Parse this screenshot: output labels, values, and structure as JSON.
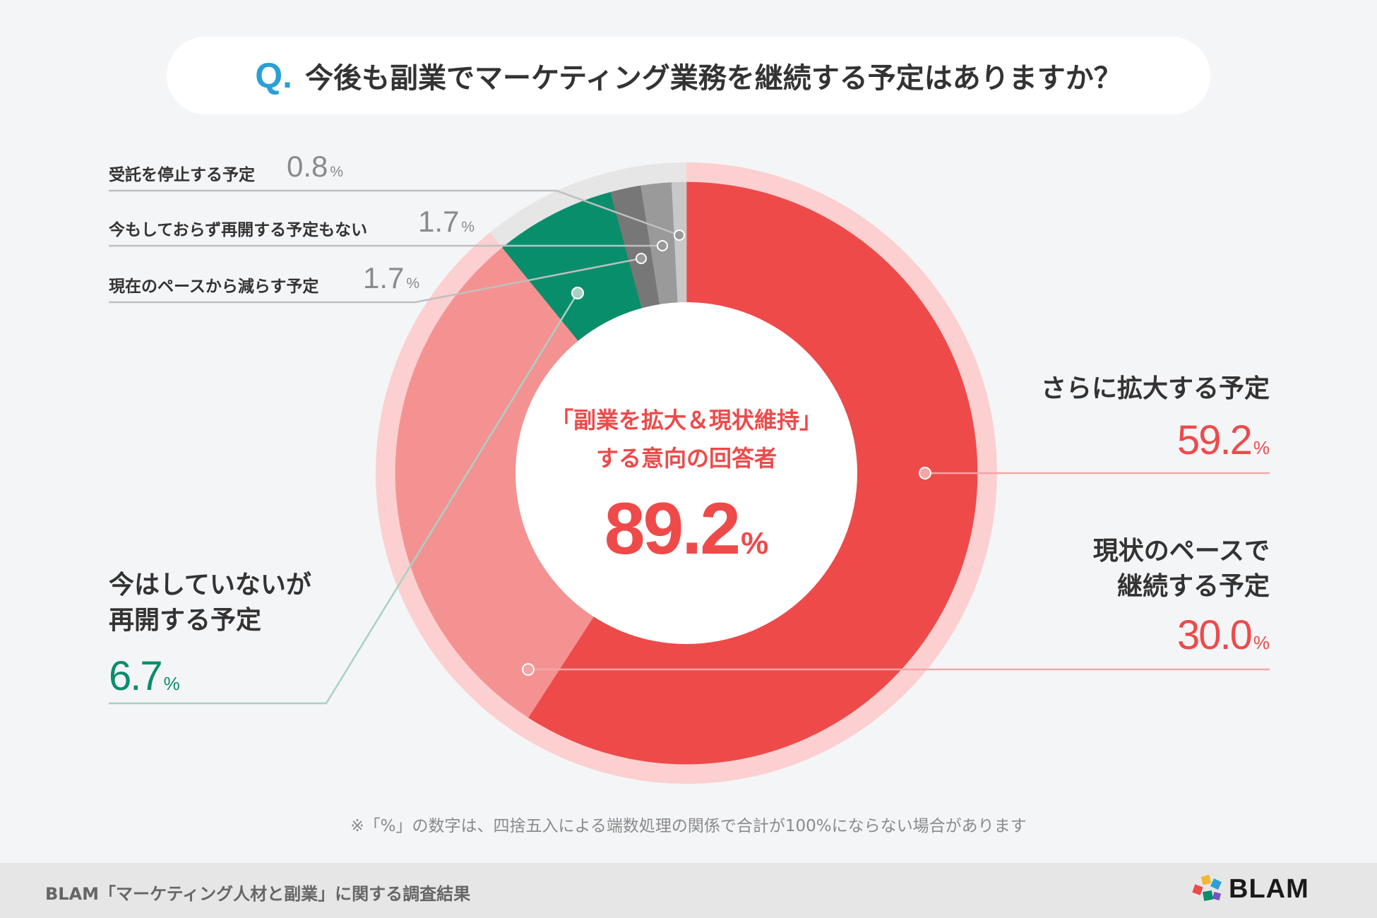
{
  "header": {
    "q_mark": "Q.",
    "question": "今後も副業でマーケティング業務を継続する予定はありますか？"
  },
  "chart_data": {
    "type": "pie",
    "categories": [
      "さらに拡大する予定",
      "現状のペースで継続する予定",
      "今はしていないが再開する予定",
      "現在のペースから減らす予定",
      "今もしておらず再開する予定もない",
      "受託を停止する予定"
    ],
    "values": [
      59.2,
      30.0,
      6.7,
      1.7,
      1.7,
      0.8
    ],
    "unit": "%",
    "colors": [
      "#ee4a4a",
      "#f49292",
      "#098e6c",
      "#777777",
      "#9a9a9a",
      "#c8c8c8"
    ],
    "center": {
      "line1": "「副業を拡大＆現状維持」",
      "line2": "する意向の回答者",
      "value": "89.2",
      "unit": "%"
    }
  },
  "labels": {
    "expand": {
      "line1": "さらに拡大する予定",
      "value": "59.2",
      "unit": "%"
    },
    "keep": {
      "line1": "現状のペースで",
      "line2": "継続する予定",
      "value": "30.0",
      "unit": "%"
    },
    "resume": {
      "line1": "今はしていないが",
      "line2": "再開する予定",
      "value": "6.7",
      "unit": "%"
    },
    "reduce": {
      "line1": "現在のペースから減らす予定",
      "value": "1.7",
      "unit": "%"
    },
    "none": {
      "line1": "今もしておらず再開する予定もない",
      "value": "1.7",
      "unit": "%"
    },
    "stop": {
      "line1": "受託を停止する予定",
      "value": "0.8",
      "unit": "%"
    }
  },
  "note": "※「%」の数字は、四捨五入による端数処理の関係で合計が100%にならない場合があります",
  "footer": {
    "source": "BLAM「マーケティング人材と副業」に関する調査結果",
    "brand": "BLAM"
  }
}
